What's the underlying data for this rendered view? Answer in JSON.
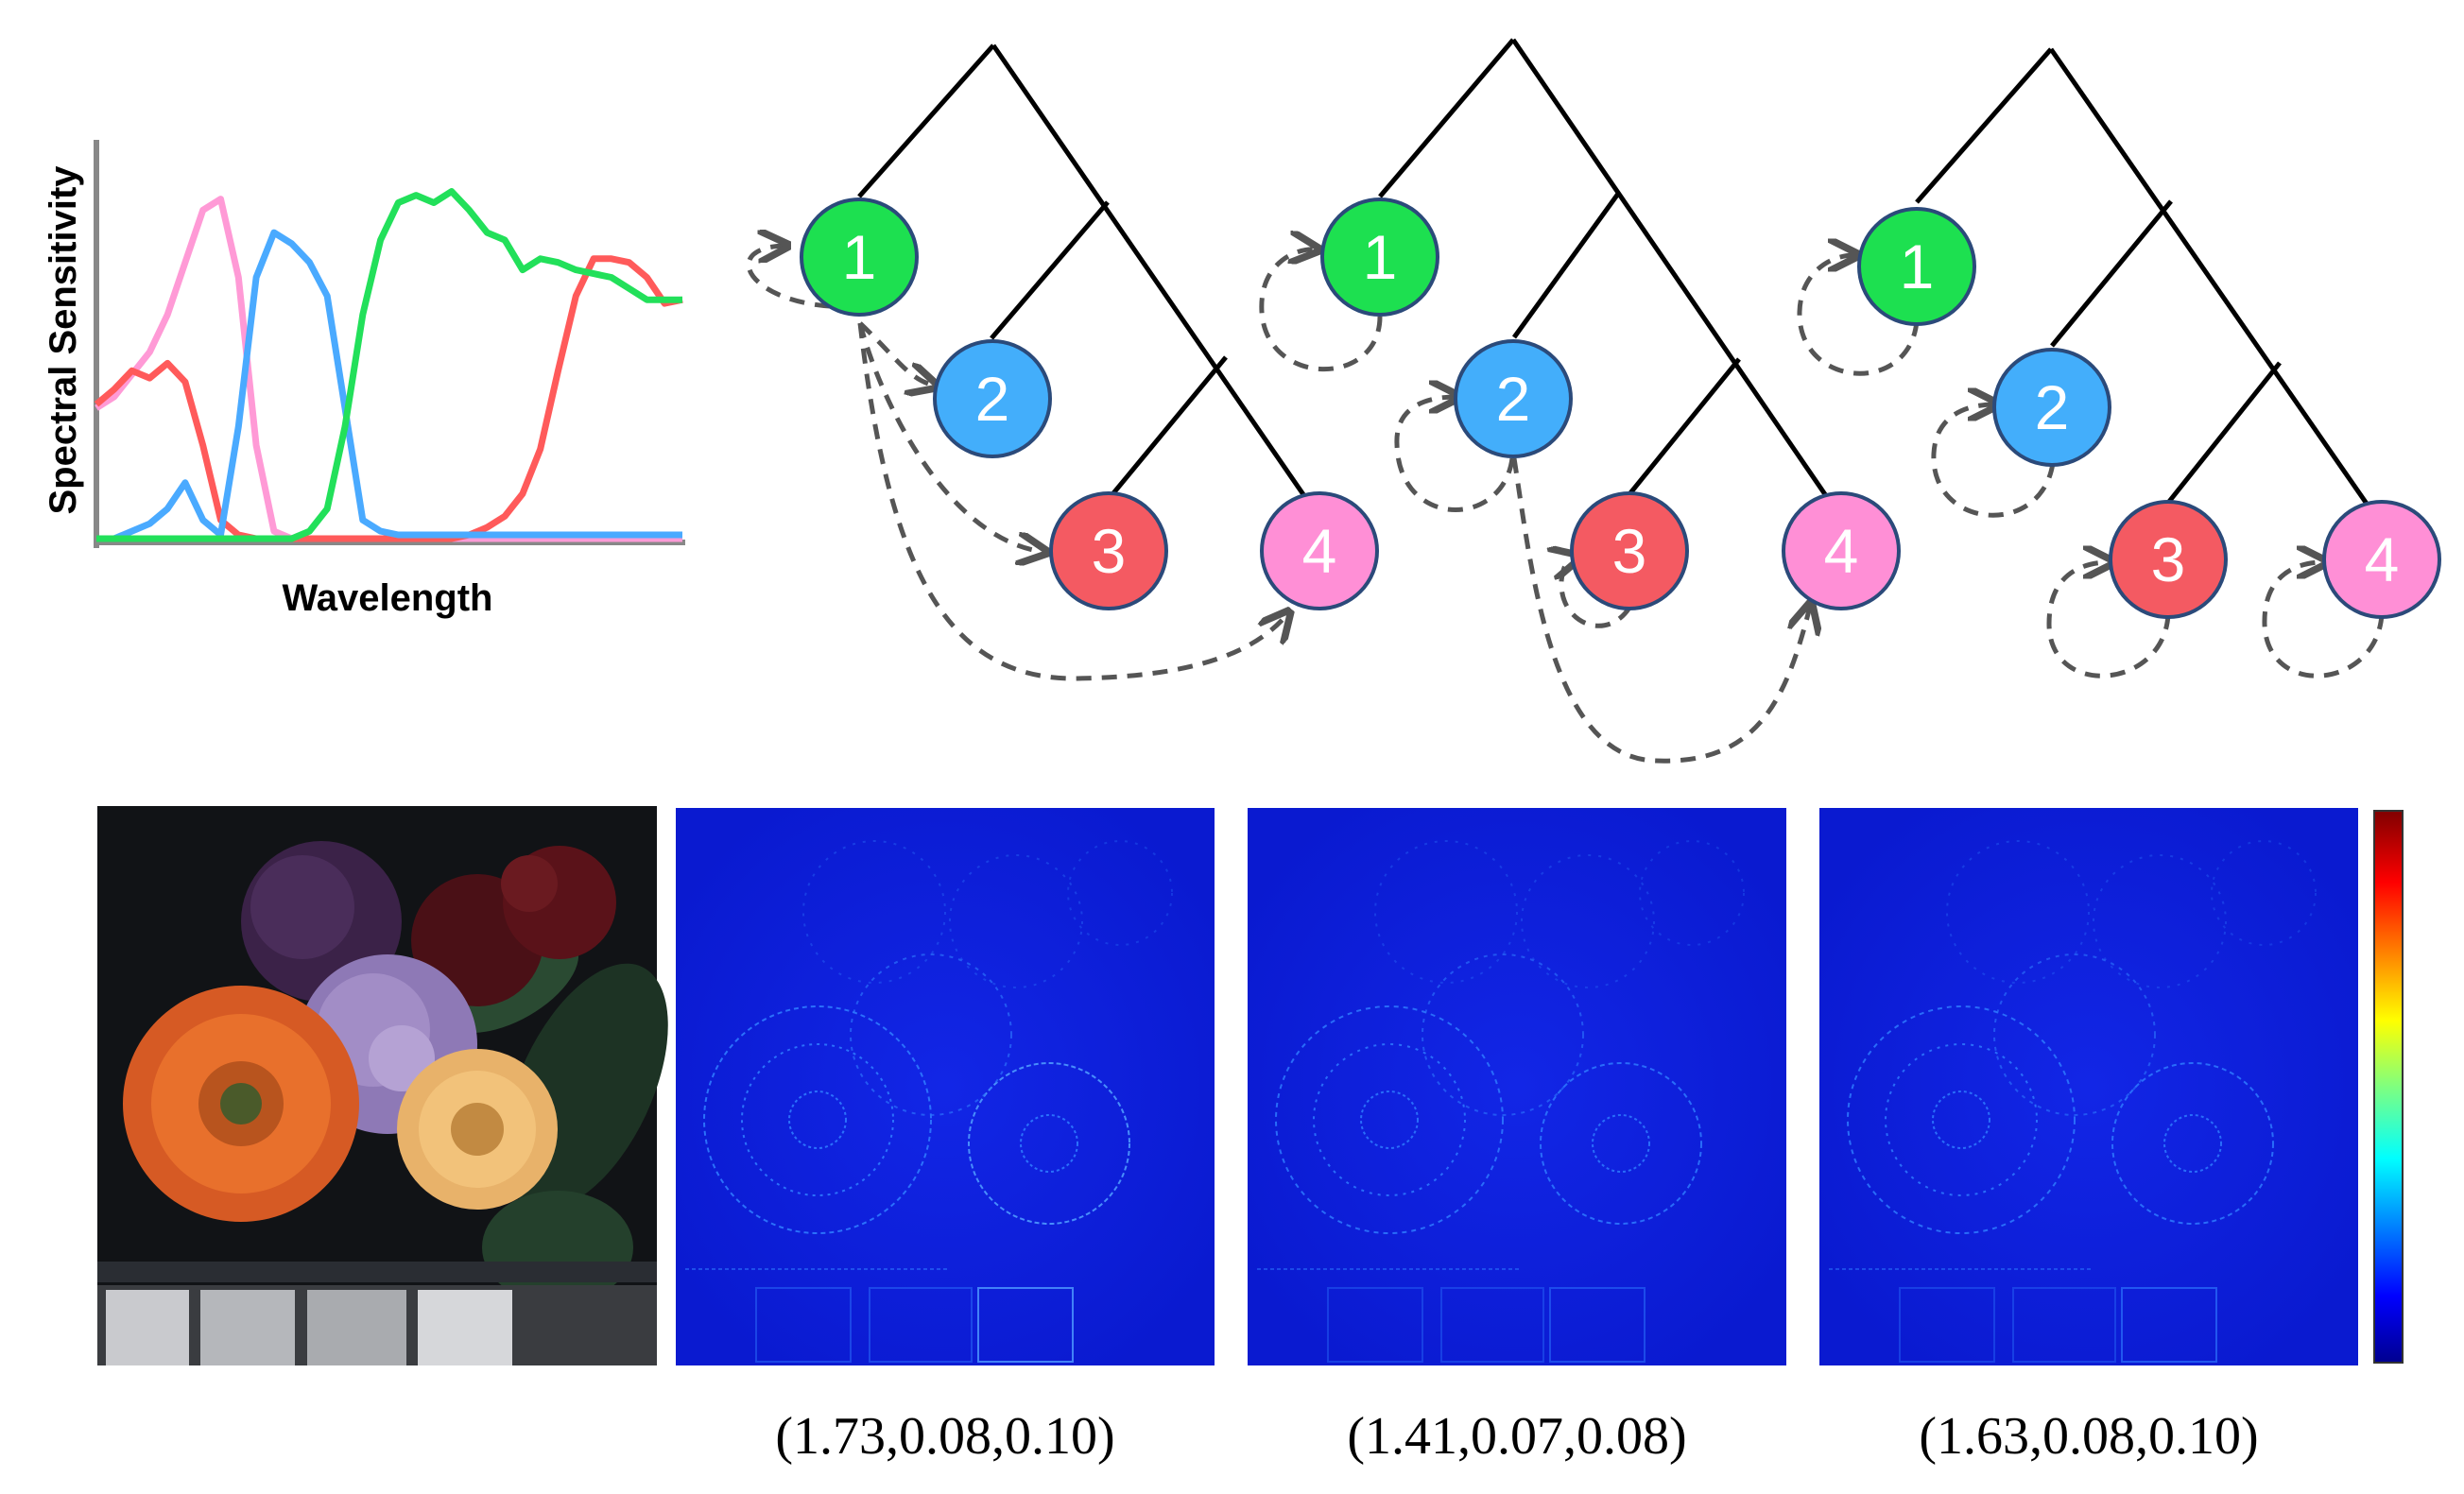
{
  "sensitivity_chart": {
    "xlabel": "Wavelength",
    "ylabel": "Spectral Sensitivity",
    "curves": [
      {
        "color": "#ff9ad6",
        "values": [
          0.35,
          0.38,
          0.44,
          0.5,
          0.6,
          0.74,
          0.88,
          0.91,
          0.7,
          0.25,
          0.02,
          0.0,
          0.0,
          0.0,
          0.0,
          0.0,
          0.0,
          0.0,
          0.0,
          0.0,
          0.0,
          0.0,
          0.0,
          0.0,
          0.0,
          0.0,
          0.0,
          0.0,
          0.0,
          0.0,
          0.0,
          0.0,
          0.0,
          0.0
        ]
      },
      {
        "color": "#ff5a5a",
        "values": [
          0.36,
          0.4,
          0.45,
          0.43,
          0.47,
          0.42,
          0.25,
          0.05,
          0.01,
          0.0,
          0.0,
          0.0,
          0.0,
          0.0,
          0.0,
          0.0,
          0.0,
          0.0,
          0.0,
          0.0,
          0.0,
          0.01,
          0.03,
          0.06,
          0.12,
          0.24,
          0.45,
          0.65,
          0.75,
          0.75,
          0.74,
          0.7,
          0.63,
          0.64
        ]
      },
      {
        "color": "#4aaaff",
        "values": [
          0.0,
          0.0,
          0.02,
          0.04,
          0.08,
          0.15,
          0.05,
          0.01,
          0.3,
          0.7,
          0.82,
          0.79,
          0.74,
          0.65,
          0.35,
          0.05,
          0.02,
          0.01,
          0.01,
          0.01,
          0.01,
          0.01,
          0.01,
          0.01,
          0.01,
          0.01,
          0.01,
          0.01,
          0.01,
          0.01,
          0.01,
          0.01,
          0.01,
          0.01
        ]
      },
      {
        "color": "#22e05a",
        "values": [
          0.0,
          0.0,
          0.0,
          0.0,
          0.0,
          0.0,
          0.0,
          0.0,
          0.0,
          0.0,
          0.0,
          0.0,
          0.02,
          0.08,
          0.3,
          0.6,
          0.8,
          0.9,
          0.92,
          0.9,
          0.93,
          0.88,
          0.82,
          0.8,
          0.72,
          0.75,
          0.74,
          0.72,
          0.71,
          0.7,
          0.67,
          0.64,
          0.64,
          0.64
        ]
      }
    ]
  },
  "trees": [
    {
      "nodes": [
        {
          "label": "1",
          "color": "#1de050"
        },
        {
          "label": "2",
          "color": "#43aefb"
        },
        {
          "label": "3",
          "color": "#f45a62"
        },
        {
          "label": "4",
          "color": "#ff8fd6"
        }
      ]
    },
    {
      "nodes": [
        {
          "label": "1",
          "color": "#1de050"
        },
        {
          "label": "2",
          "color": "#43aefb"
        },
        {
          "label": "3",
          "color": "#f45a62"
        },
        {
          "label": "4",
          "color": "#ff8fd6"
        }
      ]
    },
    {
      "nodes": [
        {
          "label": "1",
          "color": "#1de050"
        },
        {
          "label": "2",
          "color": "#43aefb"
        },
        {
          "label": "3",
          "color": "#f45a62"
        },
        {
          "label": "4",
          "color": "#ff8fd6"
        }
      ]
    }
  ],
  "error_maps": [
    {
      "caption": "(1.73,0.08,0.10)"
    },
    {
      "caption": "(1.41,0.07,0.08)"
    },
    {
      "caption": "(1.63,0.08,0.10)"
    }
  ],
  "colors": {
    "tree_edge": "#000000",
    "arrow": "#555555",
    "node_stroke": "#2b4a7a",
    "map_background": "#0a1ad0",
    "map_edges": "#2f7bff"
  }
}
